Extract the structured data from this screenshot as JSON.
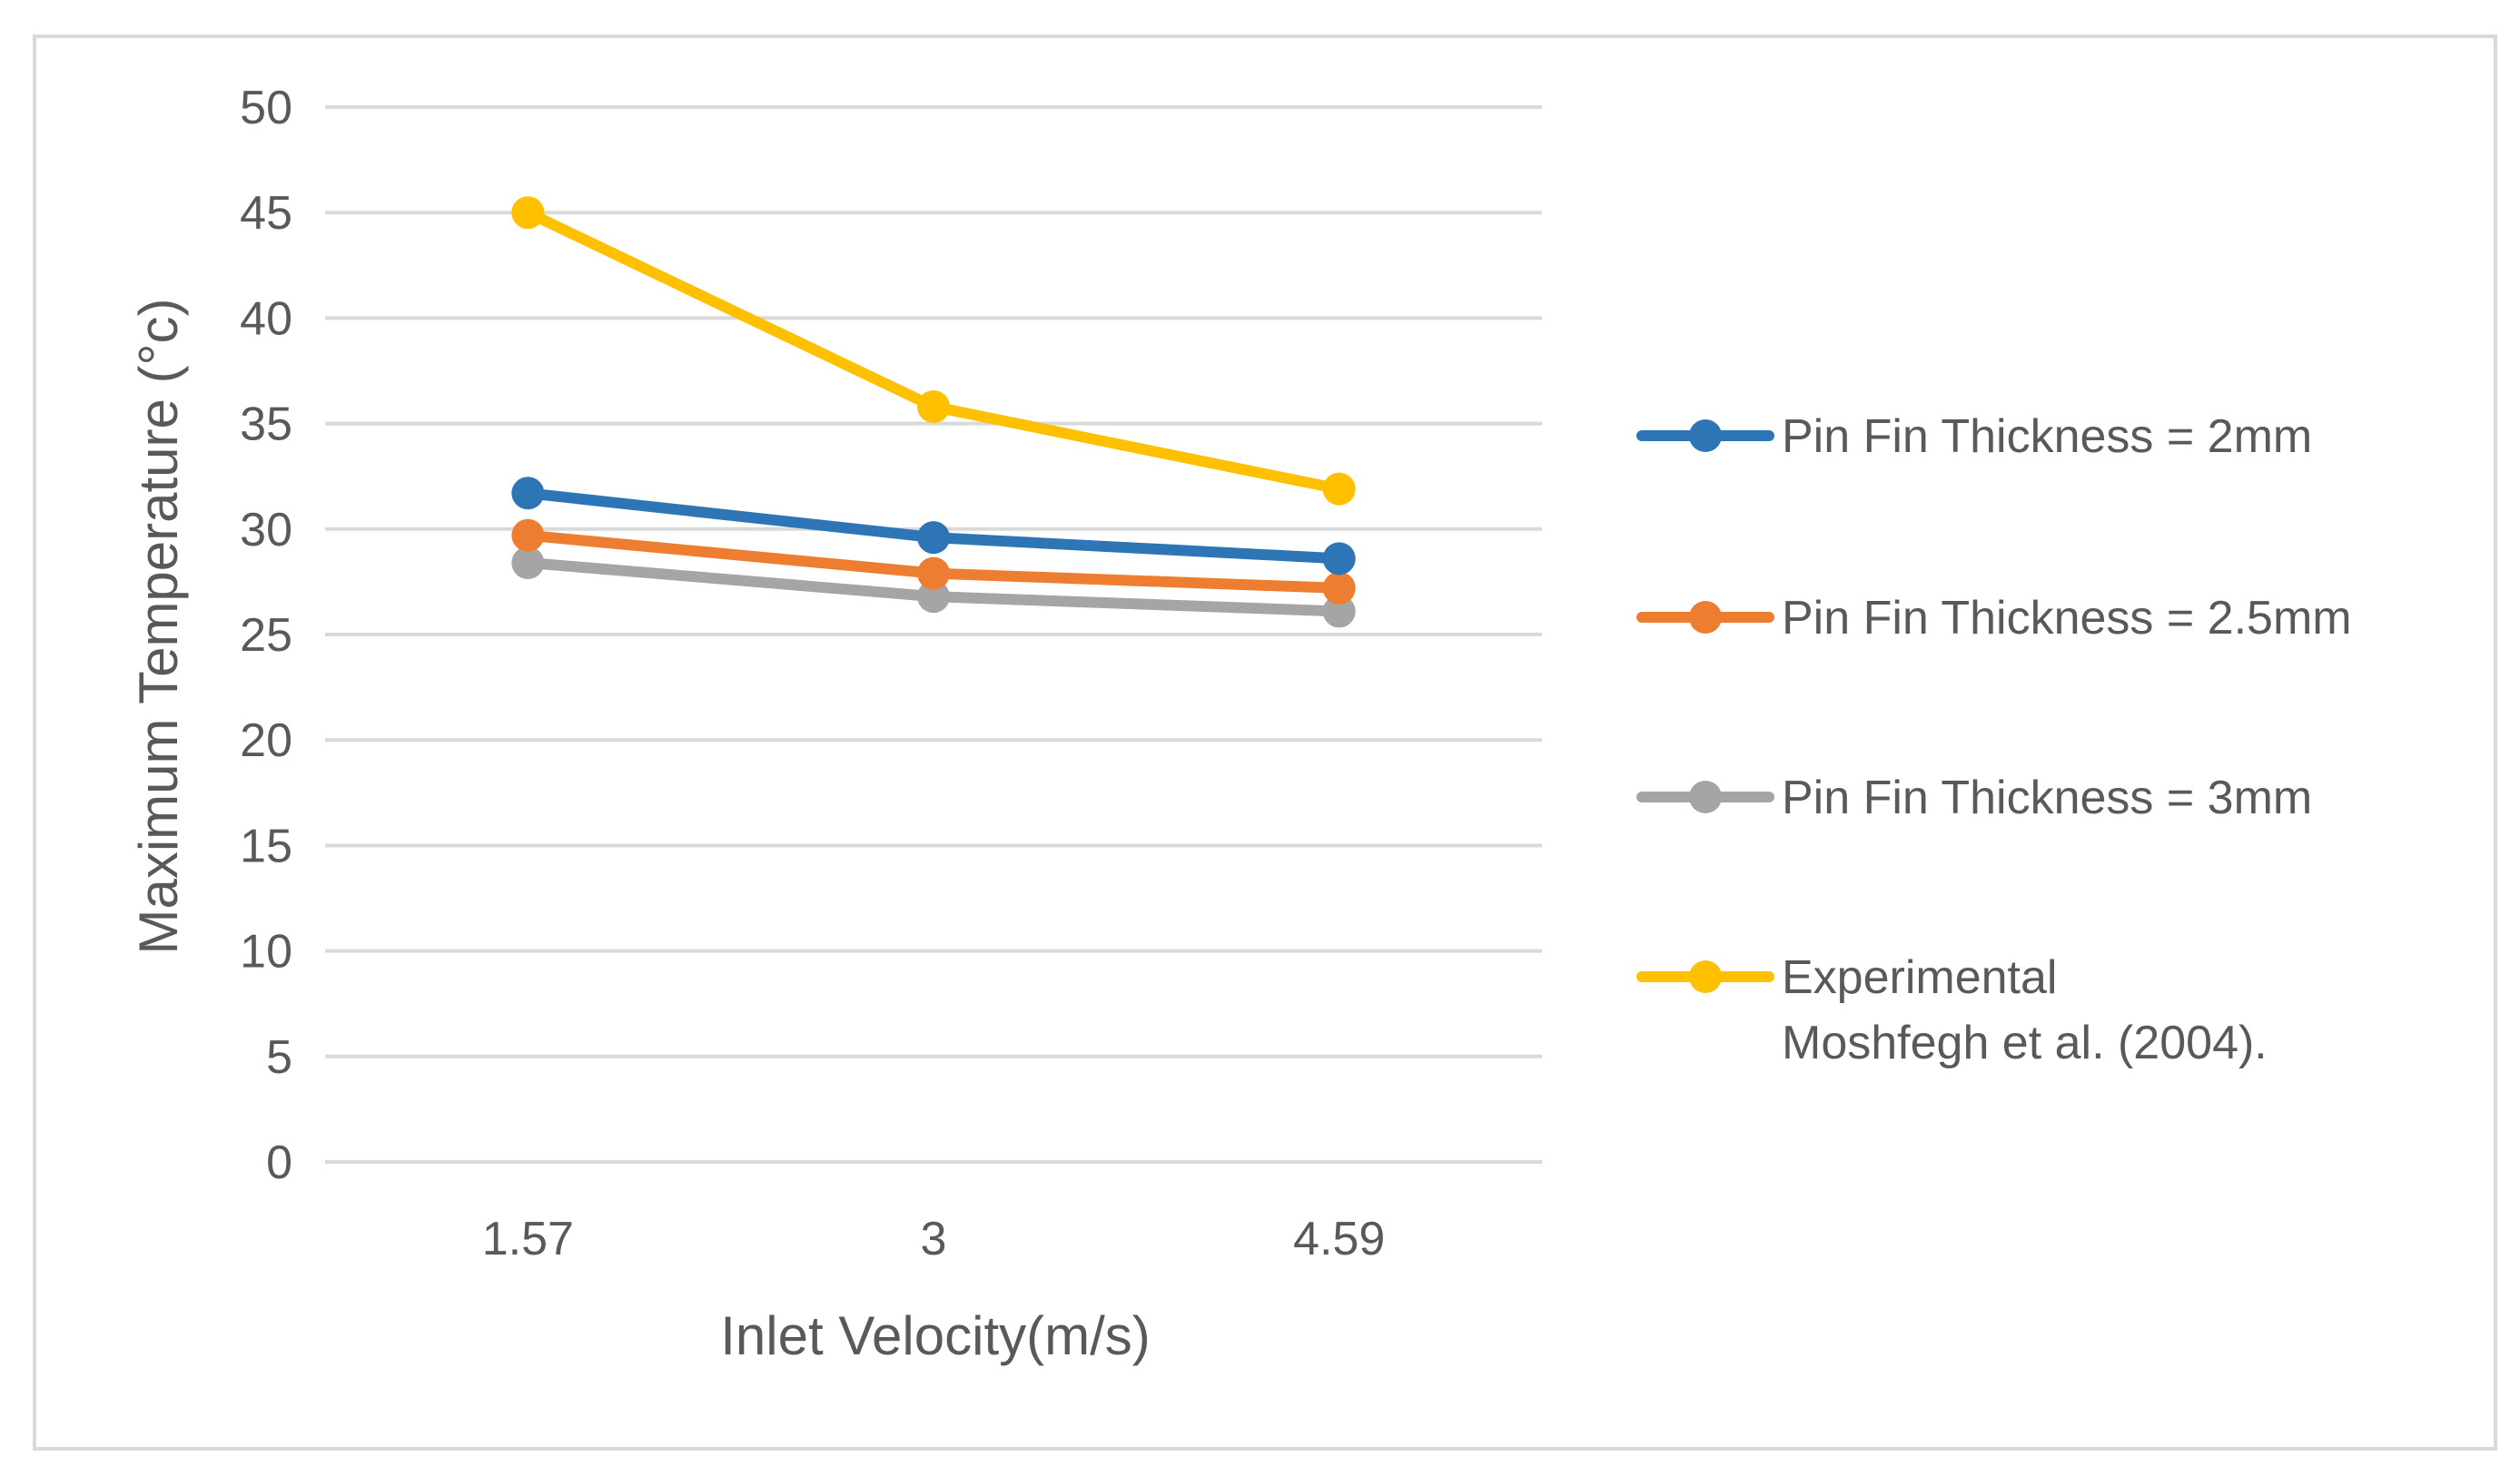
{
  "chart_data": {
    "type": "line",
    "title": "",
    "xlabel": "Inlet Velocity(m/s)",
    "ylabel": "Maximum Temperature (°c)",
    "categories": [
      "1.57",
      "3",
      "4.59"
    ],
    "ylim": [
      0,
      50
    ],
    "yticks": [
      0,
      5,
      10,
      15,
      20,
      25,
      30,
      35,
      40,
      45,
      50
    ],
    "ytick_labels": [
      "0",
      "5",
      "10",
      "15",
      "20",
      "25",
      "30",
      "35",
      "40",
      "45",
      "50"
    ],
    "grid": "horizontal",
    "legend_position": "right",
    "series": [
      {
        "name": "Pin Fin Thickness = 2mm",
        "legend_lines": [
          "Pin Fin Thickness = 2mm"
        ],
        "color": "#2E75B6",
        "values": [
          31.7,
          29.6,
          28.6
        ]
      },
      {
        "name": "Pin Fin Thickness = 2.5mm",
        "legend_lines": [
          "Pin Fin Thickness = 2.5mm"
        ],
        "color": "#ED7D31",
        "values": [
          29.7,
          27.9,
          27.2
        ]
      },
      {
        "name": "Pin Fin Thickness = 3mm",
        "legend_lines": [
          "Pin Fin Thickness = 3mm"
        ],
        "color": "#A5A5A5",
        "values": [
          28.4,
          26.8,
          26.1
        ]
      },
      {
        "name": "Experimental Moshfegh et al. (2004).",
        "legend_lines": [
          "Experimental",
          "Moshfegh et al. (2004)."
        ],
        "color": "#FFC000",
        "values": [
          45.0,
          35.8,
          31.9
        ]
      }
    ]
  }
}
